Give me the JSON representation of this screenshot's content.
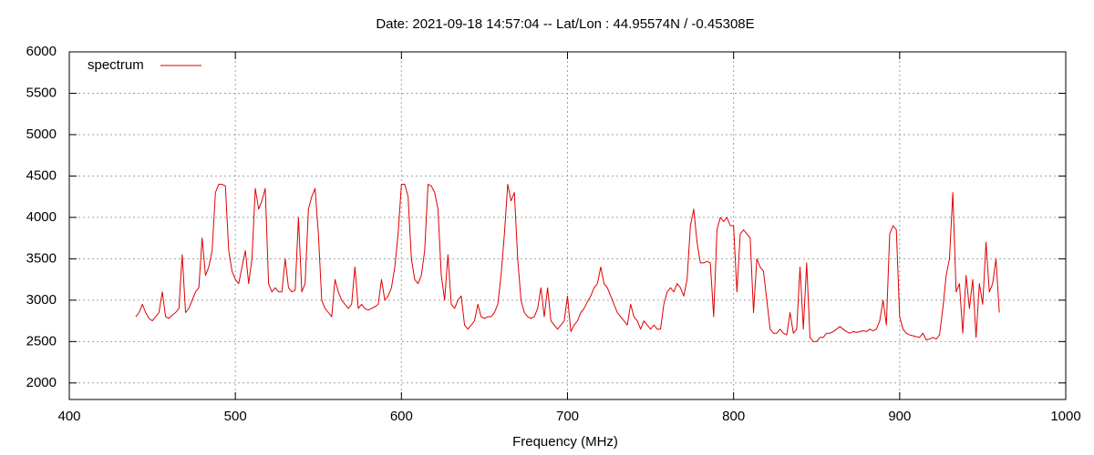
{
  "chart_data": {
    "type": "line",
    "title": "Date: 2021-09-18 14:57:04  --  Lat/Lon : 44.95574N / -0.45308E",
    "xlabel": "Frequency (MHz)",
    "xlim": [
      400,
      1000
    ],
    "xticks": [
      400,
      500,
      600,
      700,
      800,
      900,
      1000
    ],
    "ylim": [
      1800,
      6000
    ],
    "yticks": [
      2000,
      2500,
      3000,
      3500,
      4000,
      4500,
      5000,
      5500,
      6000
    ],
    "grid": true,
    "legend": "upper left",
    "x": [
      440,
      442,
      444,
      446,
      448,
      450,
      452,
      454,
      456,
      458,
      460,
      462,
      464,
      466,
      468,
      470,
      472,
      474,
      476,
      478,
      480,
      482,
      484,
      486,
      488,
      490,
      492,
      494,
      496,
      498,
      500,
      502,
      504,
      506,
      508,
      510,
      512,
      514,
      516,
      518,
      520,
      522,
      524,
      526,
      528,
      530,
      532,
      534,
      536,
      538,
      540,
      542,
      544,
      546,
      548,
      550,
      552,
      554,
      556,
      558,
      560,
      562,
      564,
      566,
      568,
      570,
      572,
      574,
      576,
      578,
      580,
      582,
      584,
      586,
      588,
      590,
      592,
      594,
      596,
      598,
      600,
      602,
      604,
      606,
      608,
      610,
      612,
      614,
      616,
      618,
      620,
      622,
      624,
      626,
      628,
      630,
      632,
      634,
      636,
      638,
      640,
      642,
      644,
      646,
      648,
      650,
      652,
      654,
      656,
      658,
      660,
      662,
      664,
      666,
      668,
      670,
      672,
      674,
      676,
      678,
      680,
      682,
      684,
      686,
      688,
      690,
      692,
      694,
      696,
      698,
      700,
      702,
      704,
      706,
      708,
      710,
      712,
      714,
      716,
      718,
      720,
      722,
      724,
      726,
      728,
      730,
      732,
      734,
      736,
      738,
      740,
      742,
      744,
      746,
      748,
      750,
      752,
      754,
      756,
      758,
      760,
      762,
      764,
      766,
      768,
      770,
      772,
      774,
      776,
      778,
      780,
      782,
      784,
      786,
      788,
      790,
      792,
      794,
      796,
      798,
      800,
      802,
      804,
      806,
      808,
      810,
      812,
      814,
      816,
      818,
      820,
      822,
      824,
      826,
      828,
      830,
      832,
      834,
      836,
      838,
      840,
      842,
      844,
      846,
      848,
      850,
      852,
      854,
      856,
      858,
      860,
      862,
      864,
      866,
      868,
      870,
      872,
      874,
      876,
      878,
      880,
      882,
      884,
      886,
      888,
      890,
      892,
      894,
      896,
      898,
      900,
      902,
      904,
      906,
      908,
      910,
      912,
      914,
      916,
      918,
      920,
      922,
      924,
      926,
      928,
      930,
      932,
      934,
      936,
      938,
      940,
      942,
      944,
      946,
      948,
      950,
      952,
      954,
      956,
      958,
      960
    ],
    "series": [
      {
        "name": "spectrum",
        "color": "#e00000",
        "values": [
          2800,
          2850,
          2950,
          2850,
          2780,
          2750,
          2800,
          2850,
          3100,
          2800,
          2780,
          2820,
          2850,
          2900,
          3550,
          2850,
          2900,
          3000,
          3100,
          3150,
          3750,
          3300,
          3400,
          3600,
          4300,
          4400,
          4400,
          4380,
          3600,
          3350,
          3250,
          3200,
          3400,
          3600,
          3200,
          3500,
          4350,
          4100,
          4200,
          4350,
          3200,
          3100,
          3150,
          3100,
          3100,
          3500,
          3150,
          3100,
          3120,
          4000,
          3100,
          3200,
          4100,
          4250,
          4350,
          3800,
          3000,
          2900,
          2850,
          2800,
          3250,
          3100,
          3000,
          2950,
          2900,
          2950,
          3400,
          2900,
          2950,
          2900,
          2880,
          2900,
          2920,
          2950,
          3250,
          3000,
          3050,
          3150,
          3400,
          3800,
          4400,
          4400,
          4250,
          3500,
          3250,
          3200,
          3300,
          3600,
          4400,
          4380,
          4300,
          4100,
          3300,
          3000,
          3550,
          2950,
          2900,
          3000,
          3050,
          2700,
          2650,
          2700,
          2750,
          2950,
          2800,
          2780,
          2800,
          2800,
          2850,
          2950,
          3300,
          3800,
          4400,
          4200,
          4300,
          3500,
          3000,
          2850,
          2800,
          2780,
          2800,
          2900,
          3150,
          2800,
          3150,
          2750,
          2700,
          2650,
          2700,
          2750,
          3050,
          2620,
          2700,
          2750,
          2850,
          2900,
          2980,
          3050,
          3150,
          3200,
          3400,
          3200,
          3150,
          3050,
          2950,
          2850,
          2800,
          2750,
          2700,
          2950,
          2800,
          2750,
          2650,
          2750,
          2700,
          2650,
          2700,
          2650,
          2650,
          2950,
          3100,
          3150,
          3100,
          3200,
          3150,
          3050,
          3250,
          3900,
          4100,
          3700,
          3450,
          3450,
          3470,
          3450,
          2800,
          3850,
          4000,
          3950,
          4000,
          3900,
          3900,
          3100,
          3800,
          3850,
          3800,
          3750,
          2850,
          3500,
          3400,
          3350,
          3000,
          2650,
          2600,
          2600,
          2650,
          2600,
          2580,
          2850,
          2600,
          2650,
          3400,
          2650,
          3450,
          2550,
          2500,
          2500,
          2550,
          2550,
          2600,
          2600,
          2620,
          2650,
          2680,
          2650,
          2620,
          2600,
          2620,
          2610,
          2620,
          2630,
          2620,
          2650,
          2630,
          2650,
          2750,
          3000,
          2700,
          3800,
          3900,
          3850,
          2800,
          2650,
          2600,
          2580,
          2570,
          2560,
          2550,
          2600,
          2520,
          2530,
          2550,
          2530,
          2580,
          2900,
          3300,
          3500,
          4300,
          3100,
          3200,
          2600,
          3300,
          2900,
          3250,
          2550,
          3200,
          2950,
          3700,
          3100,
          3200,
          3500,
          2850
        ]
      }
    ]
  }
}
